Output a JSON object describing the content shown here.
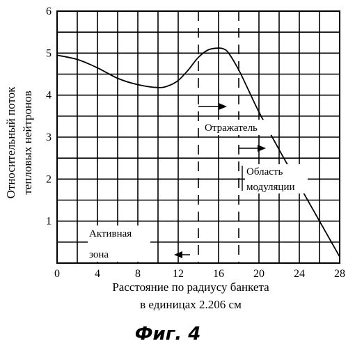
{
  "chart_data": {
    "type": "line",
    "xlabel_lines": [
      "Расстояние по радиусу банкета",
      "в единицах 2.206 см"
    ],
    "ylabel_lines": [
      "Относительный поток",
      "тепловых нейтронов"
    ],
    "x_ticks": [
      "0",
      "4",
      "8",
      "12",
      "16",
      "20",
      "24",
      "28"
    ],
    "y_ticks": [
      "1",
      "2",
      "3",
      "4",
      "5",
      "6"
    ],
    "xlim": [
      0,
      28
    ],
    "ylim": [
      0,
      6
    ],
    "grid": true,
    "series": [
      {
        "x": [
          0,
          2,
          4,
          6,
          8,
          10,
          11,
          12,
          13,
          14,
          15,
          16,
          16.5,
          17,
          18,
          19,
          20,
          22,
          24,
          26,
          28
        ],
        "y": [
          4.95,
          4.85,
          4.65,
          4.4,
          4.25,
          4.18,
          4.22,
          4.35,
          4.6,
          4.9,
          5.08,
          5.12,
          5.1,
          5.0,
          4.6,
          4.1,
          3.6,
          2.7,
          1.85,
          1.0,
          0.15
        ]
      }
    ],
    "annotations": [
      {
        "lines": [
          "Активная",
          "зона"
        ]
      },
      {
        "lines": [
          "Отражатель"
        ]
      },
      {
        "lines": [
          "Область",
          "модуляции"
        ]
      }
    ],
    "figure_caption": "Фиг. 4"
  }
}
